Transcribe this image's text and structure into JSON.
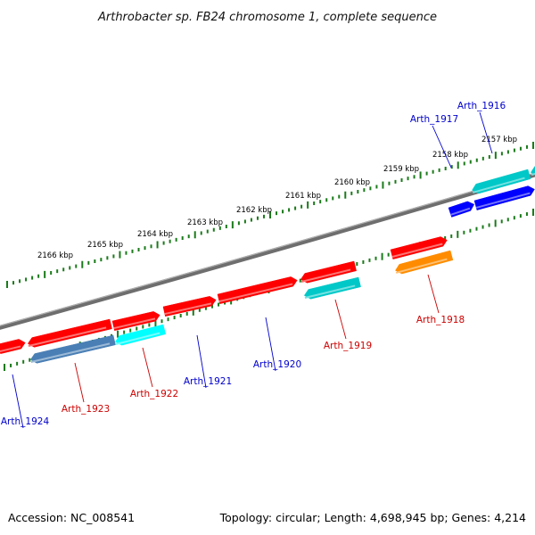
{
  "title": "Arthrobacter sp. FB24 chromosome 1, complete sequence",
  "footer": {
    "accession": "Accession: NC_008541",
    "topology": "Topology: circular; Length: 4,698,945 bp; Genes: 4,214"
  },
  "kbp_labels": [
    "2166 kbp",
    "2165 kbp",
    "2164 kbp",
    "2163 kbp",
    "2162 kbp",
    "2161 kbp",
    "2160 kbp",
    "2159 kbp",
    "2158 kbp",
    "2157 kbp"
  ],
  "genes": [
    {
      "name": "Arth_1924",
      "strand": "forward",
      "color": "#ff0000"
    },
    {
      "name": "Arth_1923",
      "strand": "reverse",
      "color": "#4a7fb5"
    },
    {
      "name": "Arth_1922",
      "strand": "reverse",
      "color": "#00ffff"
    },
    {
      "name": "Arth_1921",
      "strand": "forward",
      "color": "#ff0000"
    },
    {
      "name": "Arth_1920",
      "strand": "forward",
      "color": "#ff0000"
    },
    {
      "name": "Arth_1919",
      "strand": "reverse",
      "color": "#00c8c8"
    },
    {
      "name": "Arth_1918",
      "strand": "reverse",
      "color": "#ff8c00"
    },
    {
      "name": "Arth_1917",
      "strand": "forward",
      "color": "#0000ff"
    },
    {
      "name": "Arth_1916",
      "strand": "forward",
      "color": "#0000ff"
    }
  ],
  "colors": {
    "backbone": "#808080",
    "tick": "#1a7a1a",
    "label_forward_strand": "#0000cc",
    "label_reverse_strand": "#cc0000"
  }
}
